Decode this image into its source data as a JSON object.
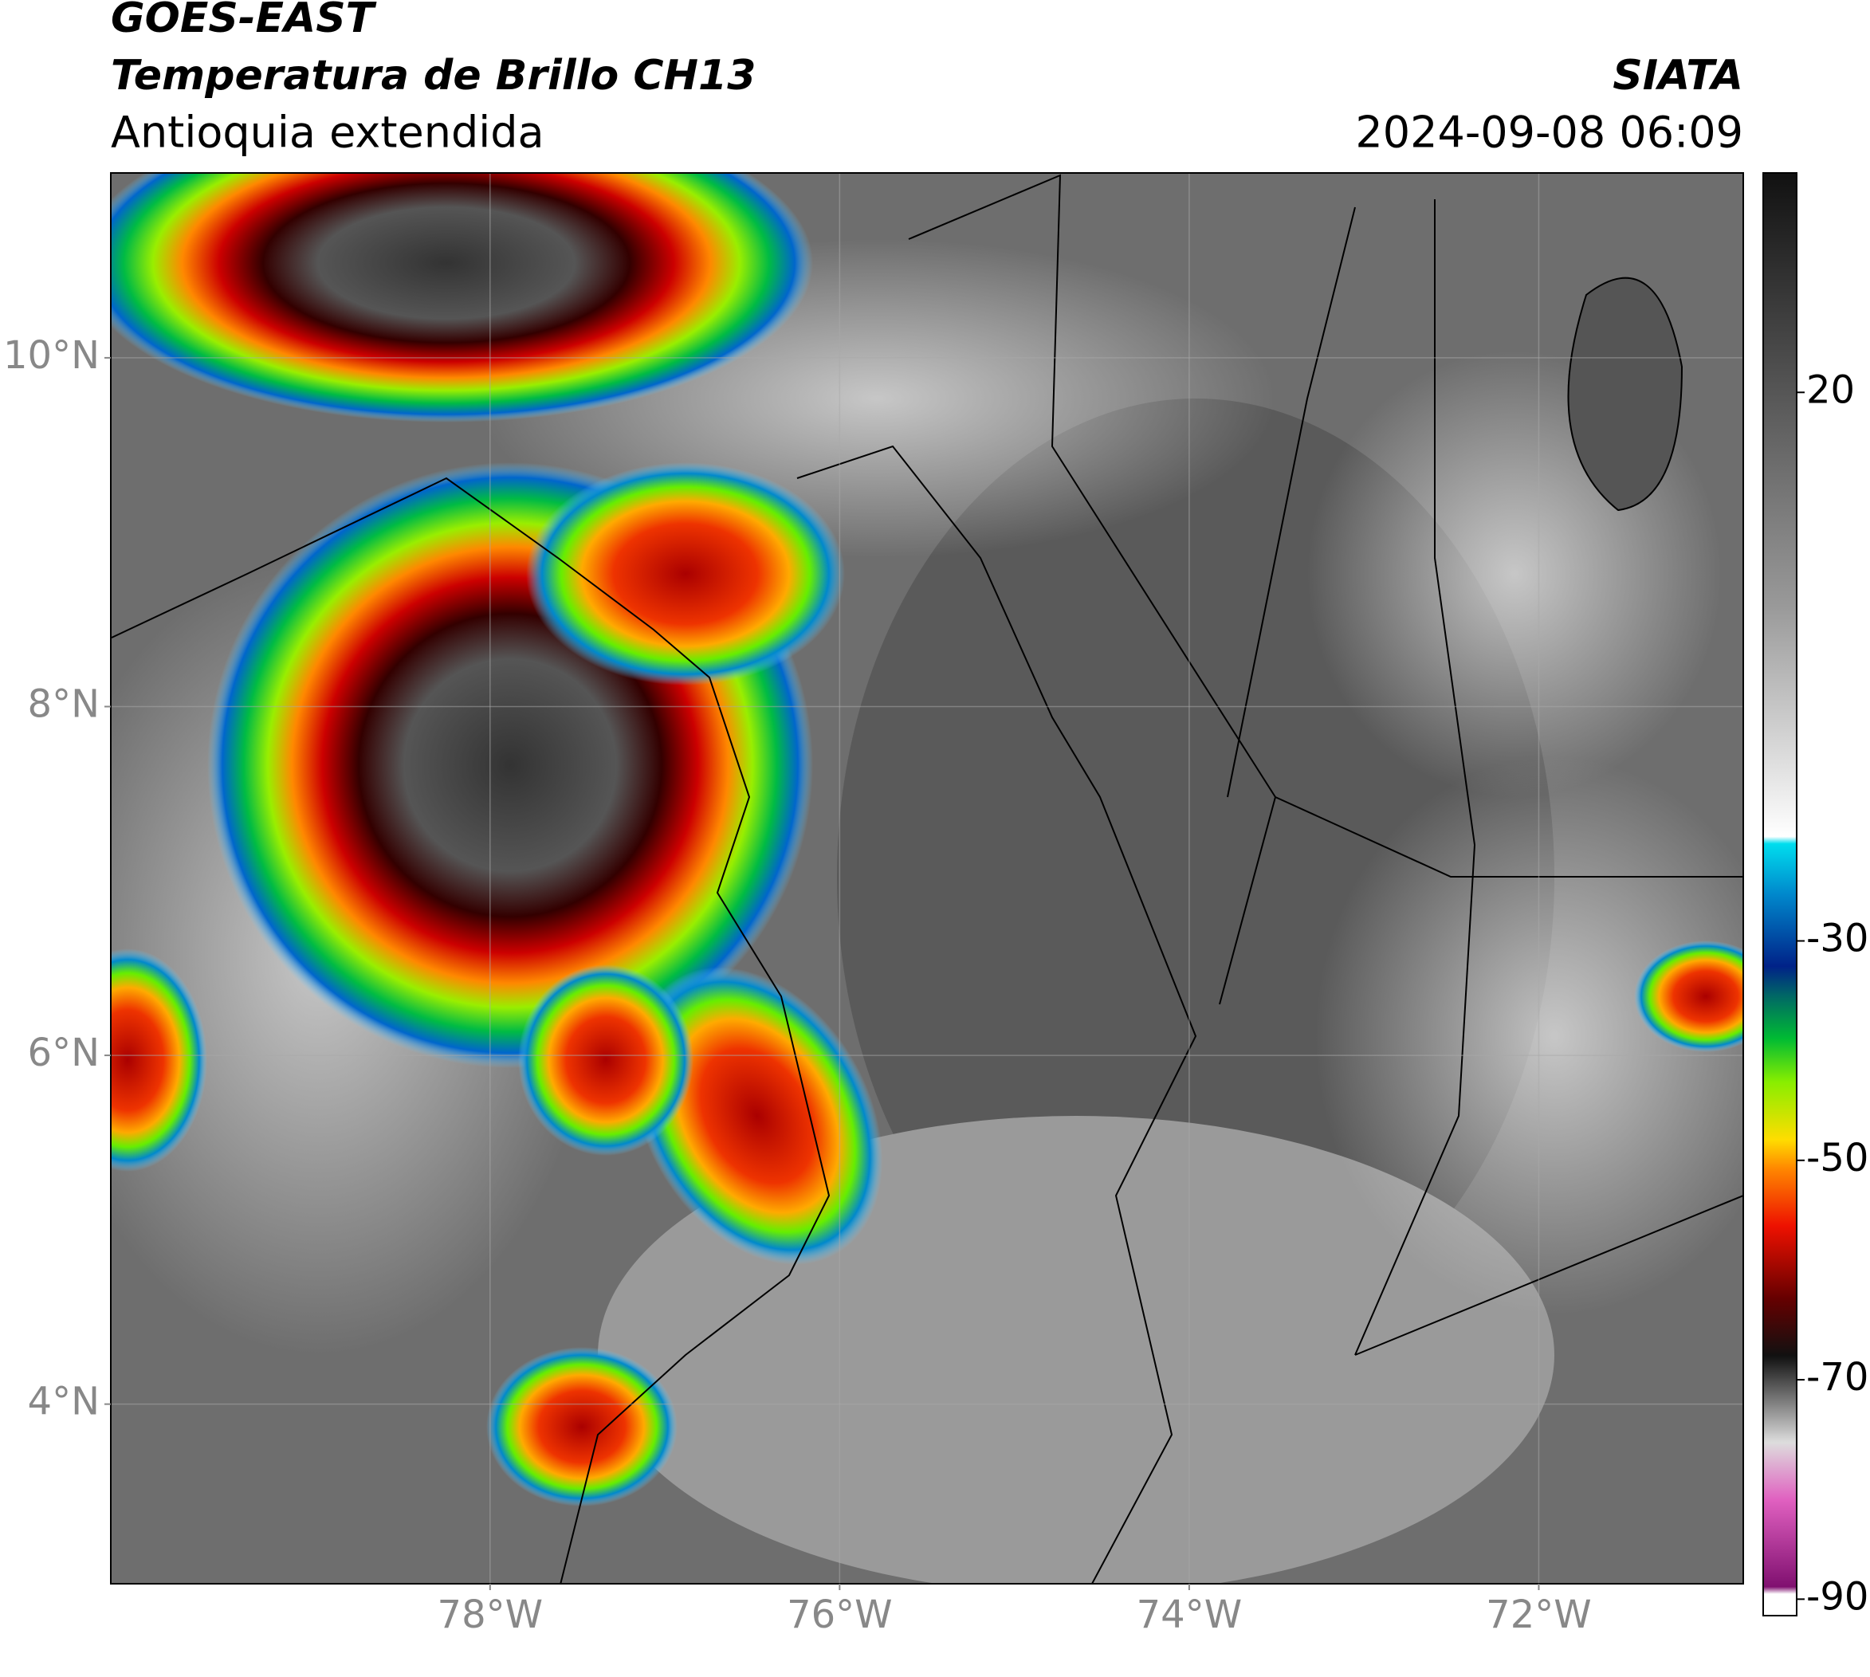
{
  "header": {
    "title": "GOES-EAST",
    "subtitle": "Temperatura de Brillo CH13",
    "region": "Antioquia extendida",
    "source": "SIATA",
    "datetime": "2024-09-08 06:09"
  },
  "map": {
    "xlim": [
      -80.17,
      -70.83
    ],
    "ylim": [
      2.97,
      11.06
    ],
    "xticks": [
      {
        "value": -78,
        "label": "78°W"
      },
      {
        "value": -76,
        "label": "76°W"
      },
      {
        "value": -74,
        "label": "74°W"
      },
      {
        "value": -72,
        "label": "72°W"
      }
    ],
    "yticks": [
      {
        "value": 4,
        "label": "4°N"
      },
      {
        "value": 6,
        "label": "6°N"
      },
      {
        "value": 8,
        "label": "8°N"
      },
      {
        "value": 10,
        "label": "10°N"
      }
    ],
    "grid": true
  },
  "colorbar": {
    "clim": [
      -91.5,
      40
    ],
    "ticks": [
      20,
      -30,
      -50,
      -70,
      -90
    ]
  }
}
